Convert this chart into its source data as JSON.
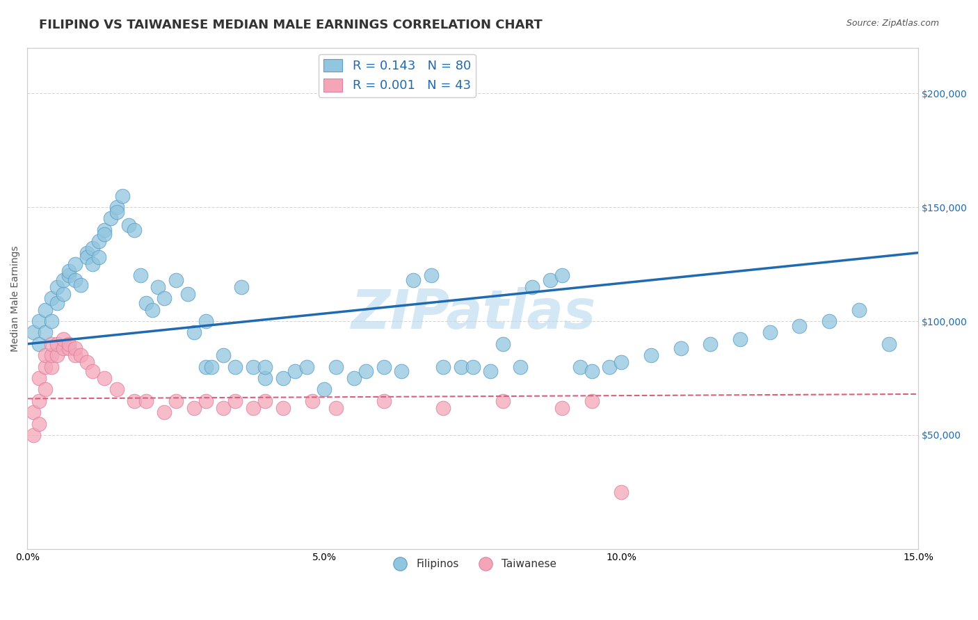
{
  "title": "FILIPINO VS TAIWANESE MEDIAN MALE EARNINGS CORRELATION CHART",
  "source": "Source: ZipAtlas.com",
  "ylabel": "Median Male Earnings",
  "xlim": [
    0.0,
    0.15
  ],
  "ylim": [
    0,
    220000
  ],
  "yticks": [
    0,
    50000,
    100000,
    150000,
    200000
  ],
  "ytick_labels_left": [
    "",
    "",
    "",
    "",
    ""
  ],
  "ytick_labels_right": [
    "",
    "$50,000",
    "$100,000",
    "$150,000",
    "$200,000"
  ],
  "xtick_labels": [
    "0.0%",
    "5.0%",
    "10.0%",
    "15.0%"
  ],
  "xtick_values": [
    0.0,
    0.05,
    0.1,
    0.15
  ],
  "grid_color": "#cccccc",
  "background_color": "#ffffff",
  "watermark_color": "#b8d8ee",
  "blue_color": "#92c5de",
  "pink_color": "#f4a6b8",
  "blue_edge_color": "#5b9fc8",
  "pink_edge_color": "#e080a0",
  "blue_line_color": "#1f6ab0",
  "pink_line_color": "#d95f7f",
  "title_fontsize": 13,
  "axis_label_fontsize": 10,
  "tick_fontsize": 10,
  "filipino_x": [
    0.001,
    0.002,
    0.002,
    0.003,
    0.003,
    0.004,
    0.004,
    0.005,
    0.005,
    0.006,
    0.006,
    0.007,
    0.007,
    0.008,
    0.008,
    0.009,
    0.01,
    0.01,
    0.011,
    0.011,
    0.012,
    0.012,
    0.013,
    0.013,
    0.014,
    0.015,
    0.015,
    0.016,
    0.017,
    0.018,
    0.019,
    0.02,
    0.021,
    0.022,
    0.023,
    0.025,
    0.027,
    0.028,
    0.03,
    0.03,
    0.031,
    0.033,
    0.035,
    0.036,
    0.038,
    0.04,
    0.04,
    0.043,
    0.045,
    0.047,
    0.05,
    0.052,
    0.055,
    0.057,
    0.06,
    0.063,
    0.065,
    0.068,
    0.07,
    0.073,
    0.075,
    0.078,
    0.08,
    0.083,
    0.085,
    0.088,
    0.09,
    0.093,
    0.095,
    0.098,
    0.1,
    0.105,
    0.11,
    0.115,
    0.12,
    0.125,
    0.13,
    0.135,
    0.14,
    0.145
  ],
  "filipino_y": [
    95000,
    90000,
    100000,
    95000,
    105000,
    100000,
    110000,
    108000,
    115000,
    112000,
    118000,
    120000,
    122000,
    125000,
    118000,
    116000,
    130000,
    128000,
    132000,
    125000,
    135000,
    128000,
    140000,
    138000,
    145000,
    150000,
    148000,
    155000,
    142000,
    140000,
    120000,
    108000,
    105000,
    115000,
    110000,
    118000,
    112000,
    95000,
    80000,
    100000,
    80000,
    85000,
    80000,
    115000,
    80000,
    75000,
    80000,
    75000,
    78000,
    80000,
    70000,
    80000,
    75000,
    78000,
    80000,
    78000,
    118000,
    120000,
    80000,
    80000,
    80000,
    78000,
    90000,
    80000,
    115000,
    118000,
    120000,
    80000,
    78000,
    80000,
    82000,
    85000,
    88000,
    90000,
    92000,
    95000,
    98000,
    100000,
    105000,
    90000
  ],
  "taiwanese_x": [
    0.001,
    0.001,
    0.002,
    0.002,
    0.002,
    0.003,
    0.003,
    0.003,
    0.004,
    0.004,
    0.004,
    0.005,
    0.005,
    0.006,
    0.006,
    0.007,
    0.007,
    0.008,
    0.008,
    0.009,
    0.01,
    0.011,
    0.013,
    0.015,
    0.018,
    0.02,
    0.023,
    0.025,
    0.028,
    0.03,
    0.033,
    0.035,
    0.038,
    0.04,
    0.043,
    0.048,
    0.052,
    0.06,
    0.07,
    0.08,
    0.09,
    0.095,
    0.1
  ],
  "taiwanese_y": [
    50000,
    60000,
    55000,
    65000,
    75000,
    70000,
    80000,
    85000,
    80000,
    85000,
    90000,
    85000,
    90000,
    88000,
    92000,
    88000,
    90000,
    85000,
    88000,
    85000,
    82000,
    78000,
    75000,
    70000,
    65000,
    65000,
    60000,
    65000,
    62000,
    65000,
    62000,
    65000,
    62000,
    65000,
    62000,
    65000,
    62000,
    65000,
    62000,
    65000,
    62000,
    65000,
    25000
  ]
}
